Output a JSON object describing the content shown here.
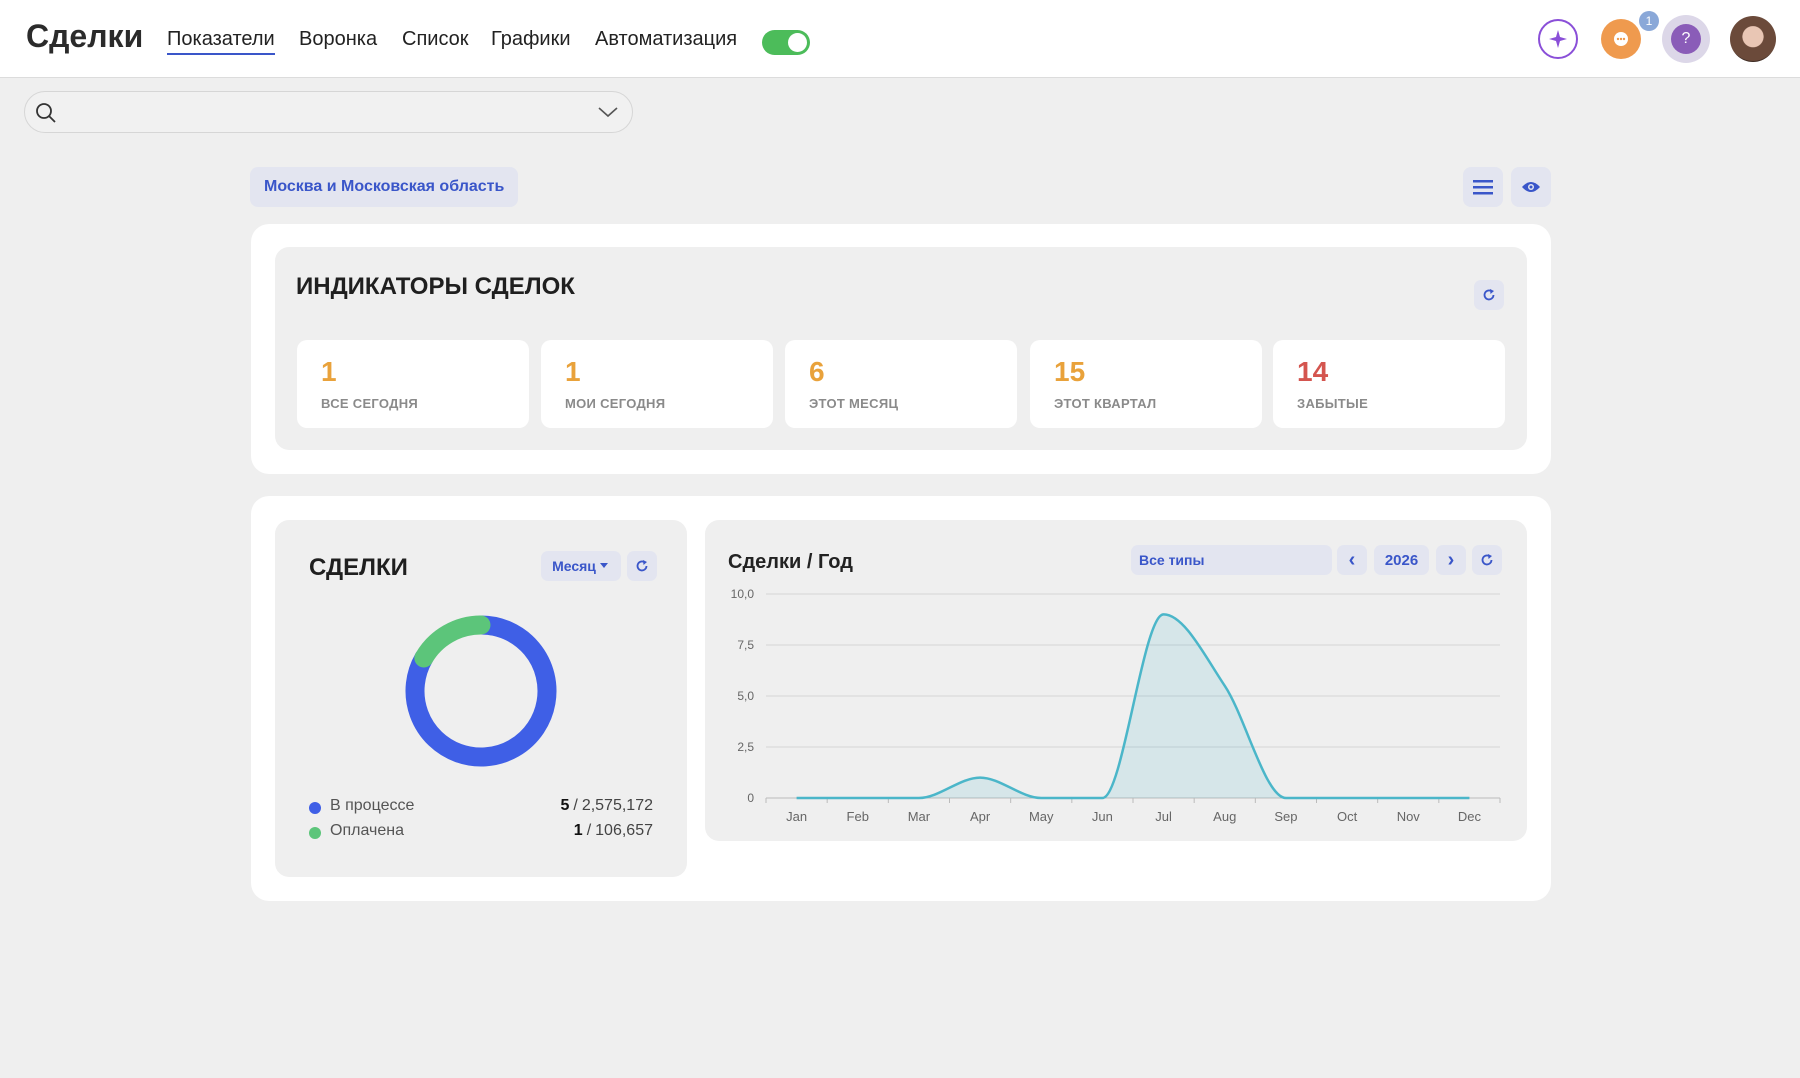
{
  "header": {
    "title": "Сделки",
    "tabs": [
      "Показатели",
      "Воронка",
      "Список",
      "Графики",
      "Автоматизация"
    ],
    "active_tab": 0,
    "notification_count": 1,
    "help_icon": "?"
  },
  "filter": {
    "region": "Москва и Московская область"
  },
  "indicators": {
    "title": "ИНДИКАТОРЫ СДЕЛОК",
    "cards": [
      {
        "value": 1,
        "label": "ВСЕ СЕГОДНЯ",
        "color": "#e9a23b"
      },
      {
        "value": 1,
        "label": "МОИ СЕГОДНЯ",
        "color": "#e9a23b"
      },
      {
        "value": 6,
        "label": "ЭТОТ МЕСЯЦ",
        "color": "#e9a23b"
      },
      {
        "value": 15,
        "label": "ЭТОТ КВАРТАЛ",
        "color": "#e9a23b"
      },
      {
        "value": 14,
        "label": "ЗАБЫТЫЕ",
        "color": "#d4554f"
      }
    ]
  },
  "deals_panel": {
    "title": "СДЕЛКИ",
    "period": "Месяц"
  },
  "year_panel": {
    "title": "Сделки / Год",
    "type_filter": "Все типы",
    "prev": "‹",
    "year": 2026,
    "next": "›"
  },
  "chart_data": [
    {
      "type": "pie",
      "donut": true,
      "categories": [
        "В процессе",
        "Оплачена"
      ],
      "values": [
        5,
        1
      ],
      "colors": [
        "#3f5fe6",
        "#5cc57a"
      ],
      "separator": "/",
      "sum_labels": [
        "2,575,172",
        "106,657"
      ]
    },
    {
      "type": "line",
      "categories": [
        "Jan",
        "Feb",
        "Mar",
        "Apr",
        "May",
        "Jun",
        "Jul",
        "Aug",
        "Sep",
        "Oct",
        "Nov",
        "Dec"
      ],
      "series": [
        {
          "color": "#4bb6c9",
          "values": [
            0,
            0,
            0,
            1,
            0,
            0,
            9,
            5.5,
            0,
            0,
            0,
            0
          ]
        }
      ],
      "ylim": [
        0,
        10
      ],
      "yticks": [
        0,
        {
          "value": 2.5,
          "label": "2,5"
        },
        {
          "value": 5,
          "label": "5,0"
        },
        {
          "value": 7.5,
          "label": "7,5"
        },
        {
          "value": 10,
          "label": "10,0"
        }
      ],
      "grid": true,
      "area": true
    }
  ]
}
